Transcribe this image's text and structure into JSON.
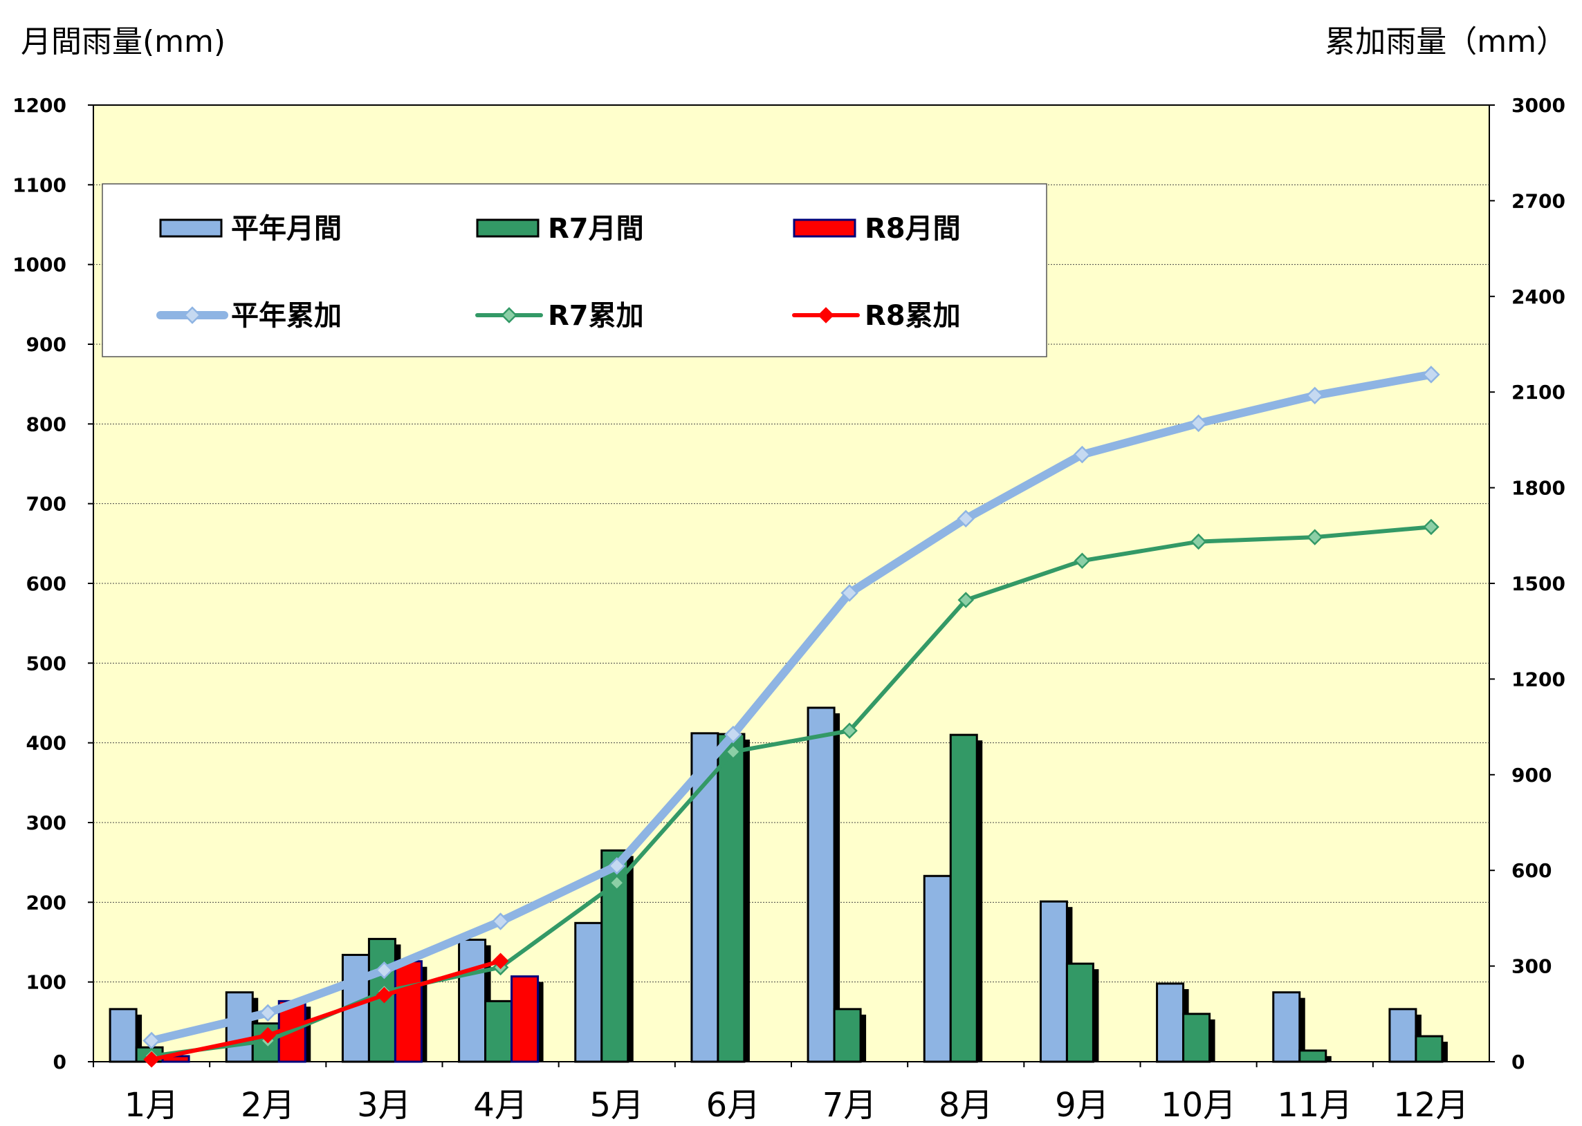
{
  "chart_data": {
    "type": "bar+line",
    "categories": [
      "1月",
      "2月",
      "3月",
      "4月",
      "5月",
      "6月",
      "7月",
      "8月",
      "9月",
      "10月",
      "11月",
      "12月"
    ],
    "ylabel_left": "月間雨量(mm)",
    "ylabel_right": "累加雨量（mm）",
    "ylim_left": [
      0,
      1200
    ],
    "yticks_left": [
      0,
      100,
      200,
      300,
      400,
      500,
      600,
      700,
      800,
      900,
      1000,
      1100,
      1200
    ],
    "ylim_right": [
      0,
      3000
    ],
    "yticks_right": [
      0,
      300,
      600,
      900,
      1200,
      1500,
      1800,
      2100,
      2400,
      2700,
      3000
    ],
    "grid": true,
    "legend_position": "top-left inside",
    "bar_series": [
      {
        "name": "平年月間",
        "color": "#8eb4e3",
        "values": [
          66,
          87,
          134,
          153,
          174,
          412,
          444,
          233,
          201,
          98,
          87,
          66
        ]
      },
      {
        "name": "R7月間",
        "color": "#339966",
        "values": [
          18,
          48,
          154,
          76,
          265,
          411,
          66,
          410,
          123,
          60,
          14,
          32
        ]
      },
      {
        "name": "R8月間",
        "color": "#ff0000",
        "values": [
          7,
          76,
          126,
          107
        ]
      }
    ],
    "line_series": [
      {
        "name": "平年累加",
        "color": "#8eb4e3",
        "values": [
          66,
          153,
          287,
          440,
          614,
          1026,
          1470,
          1703,
          1904,
          2002,
          2089,
          2155
        ]
      },
      {
        "name": "R7累加",
        "color": "#339966",
        "values": [
          18,
          66,
          220,
          296,
          561,
          972,
          1038,
          1448,
          1571,
          1631,
          1645,
          1677
        ]
      },
      {
        "name": "R8累加",
        "color": "#ff0000",
        "values": [
          7,
          83,
          209,
          316
        ]
      }
    ]
  }
}
